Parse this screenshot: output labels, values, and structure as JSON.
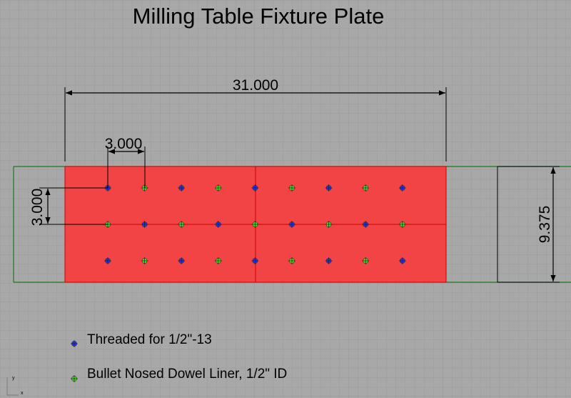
{
  "title": "Milling Table Fixture Plate",
  "dimensions": {
    "overall_width": "31.000",
    "hole_spacing_x": "3.000",
    "hole_spacing_y": "3.000",
    "overall_height": "9.375"
  },
  "legend": [
    {
      "label": "Threaded for 1/2\"-13",
      "color": "#2233ee"
    },
    {
      "label": "Bullet Nosed Dowel Liner, 1/2\" ID",
      "color": "#44dd22"
    }
  ],
  "axis_labels": {
    "y": "y",
    "x": "x"
  },
  "colors": {
    "background": "#a8a8a8",
    "grid": "#9a9a9a",
    "plate": "#f24444",
    "plate_edge": "#cc0000",
    "outline": "#1a7a1a",
    "threaded": "#2233ee",
    "dowel": "#44dd22"
  },
  "hole_rows": [
    [
      "threaded",
      "dowel",
      "threaded",
      "dowel",
      "threaded",
      "dowel",
      "threaded",
      "dowel",
      "threaded"
    ],
    [
      "dowel",
      "threaded",
      "dowel",
      "threaded",
      "dowel",
      "threaded",
      "dowel",
      "threaded",
      "dowel"
    ],
    [
      "threaded",
      "dowel",
      "threaded",
      "dowel",
      "threaded",
      "dowel",
      "threaded",
      "dowel",
      "threaded"
    ]
  ]
}
